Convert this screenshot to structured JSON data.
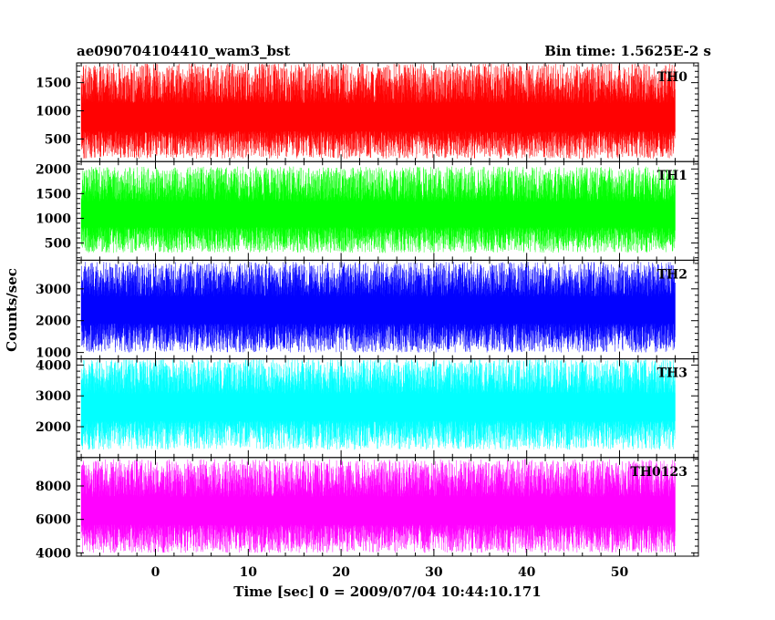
{
  "chart_data": {
    "type": "line",
    "title": "ae090704104410_wam3_bst",
    "subtitle": "Bin time: 1.5625E-2 s",
    "xlabel": "Time [sec] 0 = 2009/07/04 10:44:10.171",
    "ylabel": "Counts/sec",
    "xlim": [
      -8.5,
      58.5
    ],
    "x_data_range": [
      -8,
      56
    ],
    "xticks": [
      0,
      10,
      20,
      30,
      40,
      50
    ],
    "grid": false,
    "panels": [
      {
        "name": "TH0",
        "color": "#ff0000",
        "ylim": [
          100,
          1850
        ],
        "yticks": [
          500,
          1000,
          1500
        ],
        "band": {
          "low": 150,
          "mid": 900,
          "high": 1850
        }
      },
      {
        "name": "TH1",
        "color": "#00ff00",
        "ylim": [
          150,
          2150
        ],
        "yticks": [
          500,
          1000,
          1500,
          2000
        ],
        "band": {
          "low": 300,
          "mid": 1100,
          "high": 2050
        }
      },
      {
        "name": "TH2",
        "color": "#0000ff",
        "ylim": [
          800,
          3900
        ],
        "yticks": [
          1000,
          2000,
          3000
        ],
        "band": {
          "low": 1000,
          "mid": 2400,
          "high": 3850
        }
      },
      {
        "name": "TH3",
        "color": "#00ffff",
        "ylim": [
          1000,
          4200
        ],
        "yticks": [
          2000,
          3000,
          4000
        ],
        "band": {
          "low": 1250,
          "mid": 2700,
          "high": 4200
        }
      },
      {
        "name": "TH0123",
        "color": "#ff00ff",
        "ylim": [
          3800,
          9700
        ],
        "yticks": [
          4000,
          6000,
          8000
        ],
        "band": {
          "low": 4000,
          "mid": 6600,
          "high": 9600
        }
      }
    ]
  }
}
